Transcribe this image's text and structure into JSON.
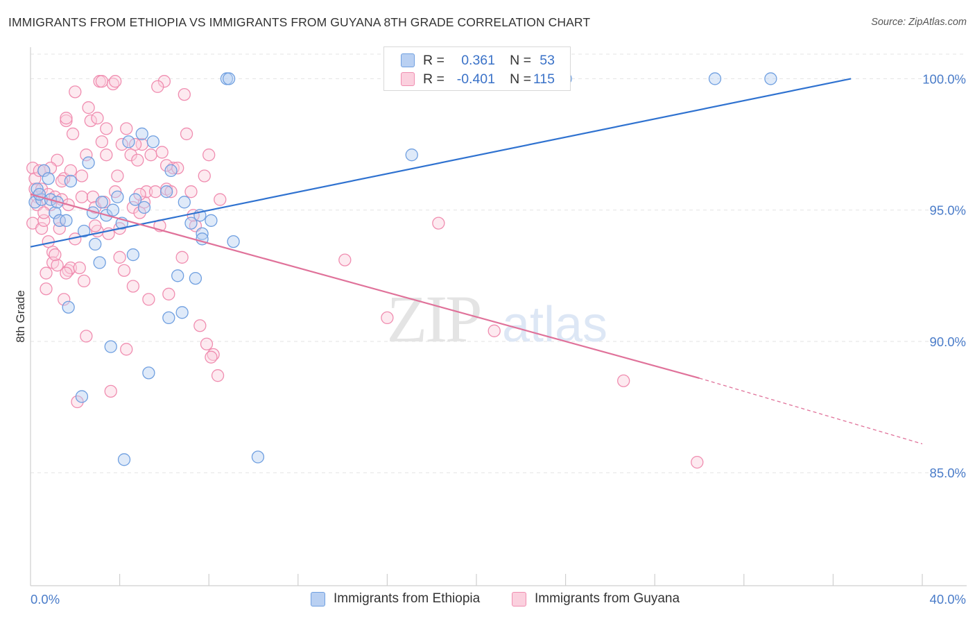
{
  "header": {
    "title": "IMMIGRANTS FROM ETHIOPIA VS IMMIGRANTS FROM GUYANA 8TH GRADE CORRELATION CHART",
    "source": "Source: ZipAtlas.com"
  },
  "watermark": {
    "zip": "ZIP",
    "atlas": "atlas"
  },
  "legend": {
    "r_label": "R =",
    "n_label": "N =",
    "rows": [
      {
        "r": "0.361",
        "n": "53"
      },
      {
        "r": "-0.401",
        "n": "115"
      }
    ]
  },
  "chart_data": {
    "type": "scatter",
    "title": "IMMIGRANTS FROM ETHIOPIA VS IMMIGRANTS FROM GUYANA 8TH GRADE CORRELATION CHART",
    "xlabel": "",
    "ylabel": "8th Grade",
    "xlim": [
      0,
      40
    ],
    "ylim": [
      80.7,
      101.2
    ],
    "x_tick_labels": [
      "0.0%",
      "40.0%"
    ],
    "y_ticks": [
      85,
      90,
      95,
      100
    ],
    "y_tick_labels": [
      "85.0%",
      "90.0%",
      "95.0%",
      "100.0%"
    ],
    "grid": true,
    "colors": {
      "ethiopia": "#6f9fe0",
      "guyana": "#f08db0",
      "ethiopia_line": "#2f72d0",
      "guyana_line": "#e0729a"
    },
    "series": [
      {
        "name": "Immigrants from Ethiopia",
        "r": 0.361,
        "n": 53,
        "trend": {
          "x0": 0,
          "y0": 93.6,
          "x1": 36.8,
          "y1": 100.0
        },
        "points": [
          [
            0.2,
            95.3
          ],
          [
            0.3,
            95.8
          ],
          [
            0.5,
            95.4
          ],
          [
            0.6,
            96.5
          ],
          [
            0.8,
            96.2
          ],
          [
            0.9,
            95.4
          ],
          [
            1.1,
            94.9
          ],
          [
            1.2,
            95.3
          ],
          [
            1.3,
            94.6
          ],
          [
            1.6,
            94.6
          ],
          [
            1.7,
            91.3
          ],
          [
            1.8,
            96.1
          ],
          [
            2.3,
            87.9
          ],
          [
            2.4,
            94.2
          ],
          [
            2.6,
            96.8
          ],
          [
            2.8,
            94.9
          ],
          [
            2.9,
            93.7
          ],
          [
            3.1,
            93.0
          ],
          [
            3.2,
            95.3
          ],
          [
            3.4,
            94.8
          ],
          [
            3.6,
            89.8
          ],
          [
            3.7,
            95.0
          ],
          [
            3.9,
            95.5
          ],
          [
            4.1,
            94.5
          ],
          [
            4.2,
            85.5
          ],
          [
            4.4,
            97.6
          ],
          [
            4.6,
            93.3
          ],
          [
            4.7,
            95.4
          ],
          [
            5.0,
            97.9
          ],
          [
            5.1,
            95.1
          ],
          [
            5.3,
            88.8
          ],
          [
            5.5,
            97.6
          ],
          [
            6.1,
            95.7
          ],
          [
            6.2,
            90.9
          ],
          [
            6.3,
            96.5
          ],
          [
            6.6,
            92.5
          ],
          [
            6.8,
            91.1
          ],
          [
            6.9,
            95.3
          ],
          [
            7.2,
            94.5
          ],
          [
            7.4,
            92.4
          ],
          [
            7.6,
            94.8
          ],
          [
            7.7,
            94.1
          ],
          [
            7.7,
            93.9
          ],
          [
            8.1,
            94.6
          ],
          [
            8.8,
            100.0
          ],
          [
            8.9,
            100.0
          ],
          [
            9.1,
            93.8
          ],
          [
            10.2,
            85.6
          ],
          [
            17.1,
            97.1
          ],
          [
            24.0,
            100.0
          ],
          [
            30.7,
            100.0
          ],
          [
            33.2,
            100.0
          ],
          [
            0.4,
            95.6
          ]
        ]
      },
      {
        "name": "Immigrants from Guyana",
        "r": -0.401,
        "n": 115,
        "trend": {
          "x0": 0,
          "y0": 95.6,
          "x1": 30.0,
          "y1": 88.6,
          "dash_x1": 40,
          "dash_y1": 86.1
        },
        "points": [
          [
            0.1,
            96.6
          ],
          [
            0.1,
            94.5
          ],
          [
            0.2,
            95.8
          ],
          [
            0.2,
            96.2
          ],
          [
            0.3,
            95.5
          ],
          [
            0.4,
            96.5
          ],
          [
            0.5,
            95.8
          ],
          [
            0.5,
            94.3
          ],
          [
            0.6,
            94.6
          ],
          [
            0.7,
            92.6
          ],
          [
            0.7,
            92.0
          ],
          [
            0.8,
            95.6
          ],
          [
            0.8,
            93.8
          ],
          [
            0.9,
            95.2
          ],
          [
            1.0,
            93.4
          ],
          [
            1.0,
            93.0
          ],
          [
            1.1,
            95.5
          ],
          [
            1.2,
            96.9
          ],
          [
            1.2,
            92.9
          ],
          [
            1.3,
            94.3
          ],
          [
            1.4,
            95.4
          ],
          [
            1.5,
            91.6
          ],
          [
            1.5,
            96.2
          ],
          [
            1.6,
            98.4
          ],
          [
            1.6,
            98.5
          ],
          [
            1.7,
            95.2
          ],
          [
            1.7,
            92.7
          ],
          [
            1.8,
            96.5
          ],
          [
            1.8,
            92.8
          ],
          [
            1.9,
            97.9
          ],
          [
            2.0,
            93.9
          ],
          [
            2.0,
            99.5
          ],
          [
            2.1,
            87.7
          ],
          [
            2.3,
            96.3
          ],
          [
            2.3,
            95.5
          ],
          [
            2.4,
            92.3
          ],
          [
            2.5,
            90.2
          ],
          [
            2.5,
            97.1
          ],
          [
            2.6,
            98.9
          ],
          [
            2.7,
            98.4
          ],
          [
            2.8,
            95.5
          ],
          [
            2.9,
            95.1
          ],
          [
            3.0,
            98.5
          ],
          [
            3.0,
            94.2
          ],
          [
            3.1,
            99.9
          ],
          [
            3.2,
            97.6
          ],
          [
            3.2,
            99.9
          ],
          [
            3.3,
            95.3
          ],
          [
            3.4,
            98.1
          ],
          [
            3.5,
            94.1
          ],
          [
            3.6,
            88.1
          ],
          [
            3.7,
            99.8
          ],
          [
            3.8,
            99.9
          ],
          [
            3.8,
            95.7
          ],
          [
            3.9,
            96.3
          ],
          [
            4.0,
            94.3
          ],
          [
            4.0,
            93.2
          ],
          [
            4.1,
            97.5
          ],
          [
            4.2,
            92.7
          ],
          [
            4.3,
            98.1
          ],
          [
            4.3,
            89.7
          ],
          [
            4.5,
            97.1
          ],
          [
            4.6,
            95.1
          ],
          [
            4.6,
            92.1
          ],
          [
            4.8,
            96.9
          ],
          [
            4.9,
            94.9
          ],
          [
            5.0,
            97.5
          ],
          [
            5.1,
            95.3
          ],
          [
            5.2,
            95.7
          ],
          [
            5.3,
            91.6
          ],
          [
            5.4,
            97.1
          ],
          [
            5.6,
            95.7
          ],
          [
            5.8,
            94.4
          ],
          [
            5.9,
            97.2
          ],
          [
            6.0,
            99.9
          ],
          [
            6.1,
            95.8
          ],
          [
            6.2,
            91.8
          ],
          [
            6.3,
            95.7
          ],
          [
            6.4,
            96.6
          ],
          [
            6.6,
            96.6
          ],
          [
            6.8,
            93.2
          ],
          [
            6.9,
            99.4
          ],
          [
            7.0,
            97.9
          ],
          [
            7.2,
            95.7
          ],
          [
            7.4,
            94.4
          ],
          [
            7.6,
            90.6
          ],
          [
            7.8,
            96.3
          ],
          [
            7.9,
            89.9
          ],
          [
            8.0,
            97.1
          ],
          [
            8.2,
            89.5
          ],
          [
            8.4,
            88.7
          ],
          [
            8.5,
            95.4
          ],
          [
            8.1,
            89.4
          ],
          [
            14.1,
            93.1
          ],
          [
            16.0,
            90.9
          ],
          [
            18.3,
            94.5
          ],
          [
            20.8,
            90.4
          ],
          [
            26.6,
            88.5
          ],
          [
            29.9,
            85.4
          ],
          [
            0.9,
            96.6
          ],
          [
            1.1,
            93.3
          ],
          [
            2.2,
            92.8
          ],
          [
            3.4,
            97.1
          ],
          [
            4.7,
            97.5
          ],
          [
            5.7,
            99.7
          ],
          [
            7.3,
            94.8
          ],
          [
            0.3,
            95.2
          ],
          [
            0.6,
            94.9
          ],
          [
            1.4,
            96.1
          ],
          [
            2.9,
            94.4
          ],
          [
            0.6,
            96.5
          ],
          [
            1.3,
            94.6
          ],
          [
            4.9,
            95.6
          ],
          [
            1.6,
            92.6
          ],
          [
            6.1,
            96.7
          ]
        ]
      }
    ]
  }
}
